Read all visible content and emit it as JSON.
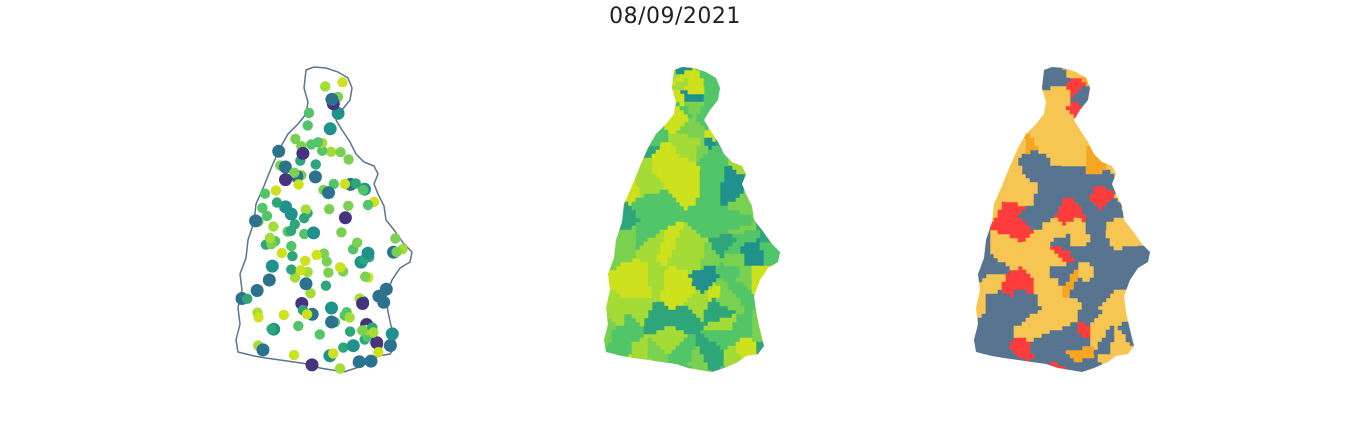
{
  "figure": {
    "title": "08/09/2021"
  },
  "colors": {
    "outline": "#5a7590",
    "viridis": [
      "#46327e",
      "#2c728e",
      "#21918c",
      "#2fa67a",
      "#52c569",
      "#7ad151",
      "#a5db36",
      "#cde11d"
    ],
    "categories": [
      "#f7c652",
      "#ff3d3d",
      "#f5a623",
      "#577590"
    ]
  },
  "panels": [
    {
      "kind": "points"
    },
    {
      "kind": "choropleth-continuous"
    },
    {
      "kind": "choropleth-categorical"
    }
  ]
}
